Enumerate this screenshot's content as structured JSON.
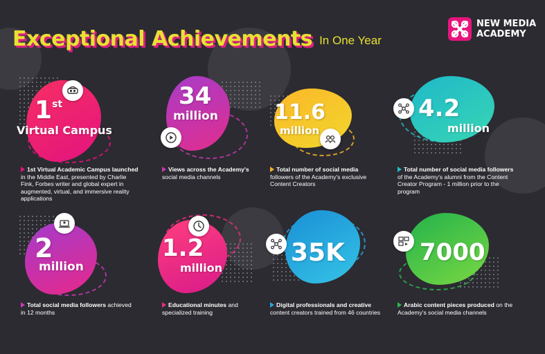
{
  "header": {
    "title": "Exceptional Achievements",
    "subtitle": "In One Year"
  },
  "logo": {
    "line1": "NEW MEDIA",
    "line2": "ACADEMY",
    "color": "#e6157e"
  },
  "colors": {
    "background": "#2c2b31",
    "title_yellow": "#e8e033",
    "title_shadow": "#d81f7f"
  },
  "cards": [
    {
      "value": "1",
      "value_sup": "st",
      "unit": "Virtual Campus",
      "lead": "1st Virtual Academic Campus launched",
      "rest": "in the Middle East, presented by Charlie Fink, Forbes writer and global expert in augmented, virtual, and immersive reality applications",
      "icon": "vr-headset-icon",
      "colors": [
        "#f72f64",
        "#e3137f"
      ],
      "accent": "#e3137f"
    },
    {
      "value": "34",
      "unit": "million",
      "lead": "Views across the Academy's",
      "rest": "social media channels",
      "icon": "video-play-icon",
      "colors": [
        "#a83cc8",
        "#e12d8e"
      ],
      "accent": "#c238b0"
    },
    {
      "value": "11.6",
      "unit": "million",
      "lead": "Total number of social media",
      "rest": "followers of the Academy's exclusive Content Creators",
      "icon": "people-icon",
      "colors": [
        "#fbb729",
        "#f1d72d"
      ],
      "accent": "#f6b12b"
    },
    {
      "value": "4.2",
      "unit": "million",
      "lead": "Total number of social media followers",
      "rest": "of the Academy's alumni from the Content Creator Program - 1 million prior to the program",
      "icon": "network-icon",
      "colors": [
        "#1fb8c9",
        "#38d6b4"
      ],
      "accent": "#22bcc6"
    },
    {
      "value": "2",
      "unit": "million",
      "lead": "Total social media followers",
      "rest": "achieved in 12 months",
      "icon": "laptop-user-icon",
      "colors": [
        "#a43ccb",
        "#e7288b"
      ],
      "accent": "#c93ab3"
    },
    {
      "value": "1.2",
      "unit": "million",
      "lead": "Educational minutes",
      "rest": "and specialized training",
      "icon": "clock-icon",
      "colors": [
        "#ff3e7e",
        "#d81b8a"
      ],
      "accent": "#ec2b82"
    },
    {
      "value": "35K",
      "unit": "",
      "lead": "Digital professionals and creative",
      "rest": "content creators trained from 46 countries",
      "icon": "network-icon",
      "colors": [
        "#1a8fd6",
        "#35c4e6"
      ],
      "accent": "#2aa2dc"
    },
    {
      "value": "7000",
      "unit": "",
      "lead": "Arabic content pieces produced",
      "rest": "on the Academy's social media channels",
      "icon": "content-pieces-icon",
      "colors": [
        "#22b24c",
        "#7ad842"
      ],
      "accent": "#2cb54e"
    }
  ]
}
